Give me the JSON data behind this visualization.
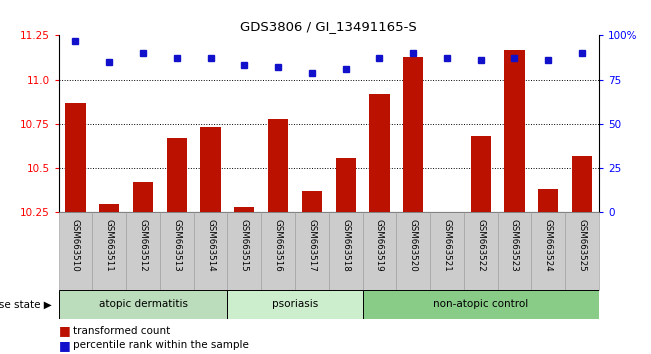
{
  "title": "GDS3806 / GI_13491165-S",
  "samples": [
    "GSM663510",
    "GSM663511",
    "GSM663512",
    "GSM663513",
    "GSM663514",
    "GSM663515",
    "GSM663516",
    "GSM663517",
    "GSM663518",
    "GSM663519",
    "GSM663520",
    "GSM663521",
    "GSM663522",
    "GSM663523",
    "GSM663524",
    "GSM663525"
  ],
  "bar_values": [
    10.87,
    10.3,
    10.42,
    10.67,
    10.73,
    10.28,
    10.78,
    10.37,
    10.56,
    10.92,
    11.13,
    10.25,
    10.68,
    11.17,
    10.38,
    10.57
  ],
  "blue_values": [
    97,
    85,
    90,
    87,
    87,
    83,
    82,
    79,
    81,
    87,
    90,
    87,
    86,
    87,
    86,
    90
  ],
  "ylim_left": [
    10.25,
    11.25
  ],
  "ylim_right": [
    0,
    100
  ],
  "yticks_left": [
    10.25,
    10.5,
    10.75,
    11.0,
    11.25
  ],
  "yticks_right": [
    0,
    25,
    50,
    75,
    100
  ],
  "ytick_labels_right": [
    "0",
    "25",
    "50",
    "75",
    "100%"
  ],
  "bar_color": "#BB1100",
  "blue_color": "#1111CC",
  "groups": [
    {
      "label": "atopic dermatitis",
      "start": 0,
      "end": 4,
      "color": "#BBDDBB"
    },
    {
      "label": "psoriasis",
      "start": 5,
      "end": 8,
      "color": "#CCEECC"
    },
    {
      "label": "non-atopic control",
      "start": 9,
      "end": 15,
      "color": "#88CC88"
    }
  ],
  "disease_state_label": "disease state",
  "legend_bar_label": "transformed count",
  "legend_blue_label": "percentile rank within the sample",
  "tick_label_bg": "#CCCCCC",
  "grid_dotted_at": [
    10.5,
    10.75,
    11.0
  ]
}
